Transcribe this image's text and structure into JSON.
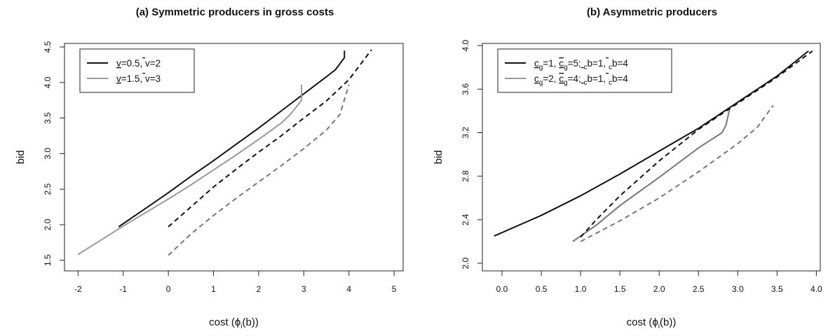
{
  "chart_data": [
    {
      "type": "line",
      "title": "(a) Symmetric producers in gross costs",
      "xlabel": "cost (ϕ",
      "xlabel_sub": "i",
      "xlabel_suffix": "(b))",
      "ylabel": "bid",
      "xlim": [
        -2.3,
        5.2
      ],
      "ylim": [
        1.35,
        4.55
      ],
      "xticks": [
        -2,
        -1,
        0,
        1,
        2,
        3,
        4,
        5
      ],
      "xtick_labels": [
        "-2",
        "-1",
        "0",
        "1",
        "2",
        "3",
        "4",
        "5"
      ],
      "yticks": [
        1.5,
        2.0,
        2.5,
        3.0,
        3.5,
        4.0,
        4.5
      ],
      "ytick_labels": [
        "1.5",
        "2.0",
        "2.5",
        "3.0",
        "3.5",
        "4.0",
        "4.5"
      ],
      "grid": false,
      "legend_position": "top-left",
      "legend": [
        {
          "text": "v=0.5, v=2",
          "color": "#111111",
          "under": [
            0
          ],
          "over": [
            6
          ]
        },
        {
          "text": "v=1.5, v=3",
          "color": "#999999",
          "under": [
            0
          ],
          "over": [
            6
          ]
        }
      ],
      "series": [
        {
          "color": "#111111",
          "dash": false,
          "x": [
            -1.1,
            -0.5,
            0,
            0.5,
            1,
            1.5,
            2,
            2.5,
            3,
            3.5,
            3.7,
            3.9,
            3.9
          ],
          "y": [
            1.97,
            2.23,
            2.45,
            2.68,
            2.9,
            3.13,
            3.36,
            3.6,
            3.84,
            4.08,
            4.18,
            4.35,
            4.45
          ]
        },
        {
          "color": "#999999",
          "dash": false,
          "x": [
            -2,
            -1.5,
            -1,
            -0.5,
            0,
            0.5,
            1,
            1.5,
            2,
            2.5,
            2.7,
            2.95,
            2.95
          ],
          "y": [
            1.58,
            1.78,
            1.98,
            2.17,
            2.36,
            2.56,
            2.77,
            2.98,
            3.2,
            3.43,
            3.55,
            3.75,
            3.97
          ]
        },
        {
          "color": "#111111",
          "dash": true,
          "x": [
            0,
            0.5,
            1,
            1.5,
            2,
            2.5,
            3,
            3.5,
            4,
            4.5
          ],
          "y": [
            1.97,
            2.25,
            2.53,
            2.78,
            3.02,
            3.25,
            3.5,
            3.74,
            4.04,
            4.46
          ]
        },
        {
          "color": "#777777",
          "dash": true,
          "x": [
            0,
            0.5,
            1,
            1.5,
            2,
            2.5,
            3,
            3.5,
            3.8,
            4
          ],
          "y": [
            1.57,
            1.87,
            2.13,
            2.37,
            2.6,
            2.83,
            3.07,
            3.33,
            3.55,
            3.97
          ]
        }
      ]
    },
    {
      "type": "line",
      "title": "(b) Asymmetric producers",
      "xlabel": "cost (ϕ",
      "xlabel_sub": "i",
      "xlabel_suffix": "(b))",
      "ylabel": "bid",
      "xlim": [
        -0.25,
        4.05
      ],
      "ylim": [
        1.93,
        4.02
      ],
      "xticks": [
        0,
        0.5,
        1,
        1.5,
        2,
        2.5,
        3,
        3.5,
        4
      ],
      "xtick_labels": [
        "0.0",
        "0.5",
        "1.0",
        "1.5",
        "2.0",
        "2.5",
        "3.0",
        "3.5",
        "4.0"
      ],
      "yticks": [
        2.0,
        2.4,
        2.8,
        3.2,
        3.6,
        4.0
      ],
      "ytick_labels": [
        "2.0",
        "2.4",
        "2.8",
        "3.2",
        "3.6",
        "4.0"
      ],
      "grid": false,
      "legend_position": "top-left",
      "legend": [
        {
          "text": "cg=1, cg=5; cb=1, cb=4",
          "color": "#111111",
          "under": [
            0,
            6,
            11
          ],
          "over": [
            6,
            17
          ],
          "sub": [
            1,
            7,
            12,
            18
          ]
        },
        {
          "text": "cg=2, cg=4; cb=1, cb=4",
          "color": "#999999",
          "under": [
            0,
            6,
            11
          ],
          "over": [
            6,
            17
          ],
          "sub": [
            1,
            7,
            12,
            18
          ]
        }
      ],
      "series": [
        {
          "color": "#111111",
          "dash": false,
          "x": [
            -0.1,
            0.5,
            1,
            1.5,
            2,
            2.5,
            3,
            3.5,
            3.9
          ],
          "y": [
            2.25,
            2.44,
            2.62,
            2.82,
            3.03,
            3.24,
            3.48,
            3.72,
            3.95
          ]
        },
        {
          "color": "#777777",
          "dash": false,
          "x": [
            0.9,
            1.2,
            1.5,
            2,
            2.5,
            2.8,
            2.85,
            2.9
          ],
          "y": [
            2.2,
            2.35,
            2.53,
            2.79,
            3.06,
            3.2,
            3.27,
            3.43
          ]
        },
        {
          "color": "#111111",
          "dash": true,
          "x": [
            1.0,
            1.2,
            1.5,
            2,
            2.5,
            3,
            3.5,
            3.95
          ],
          "y": [
            2.24,
            2.4,
            2.62,
            2.94,
            3.23,
            3.47,
            3.71,
            3.95
          ]
        },
        {
          "color": "#777777",
          "dash": true,
          "x": [
            1.0,
            1.5,
            2,
            2.5,
            3,
            3.25,
            3.45
          ],
          "y": [
            2.2,
            2.39,
            2.6,
            2.84,
            3.1,
            3.25,
            3.45
          ]
        }
      ]
    }
  ]
}
